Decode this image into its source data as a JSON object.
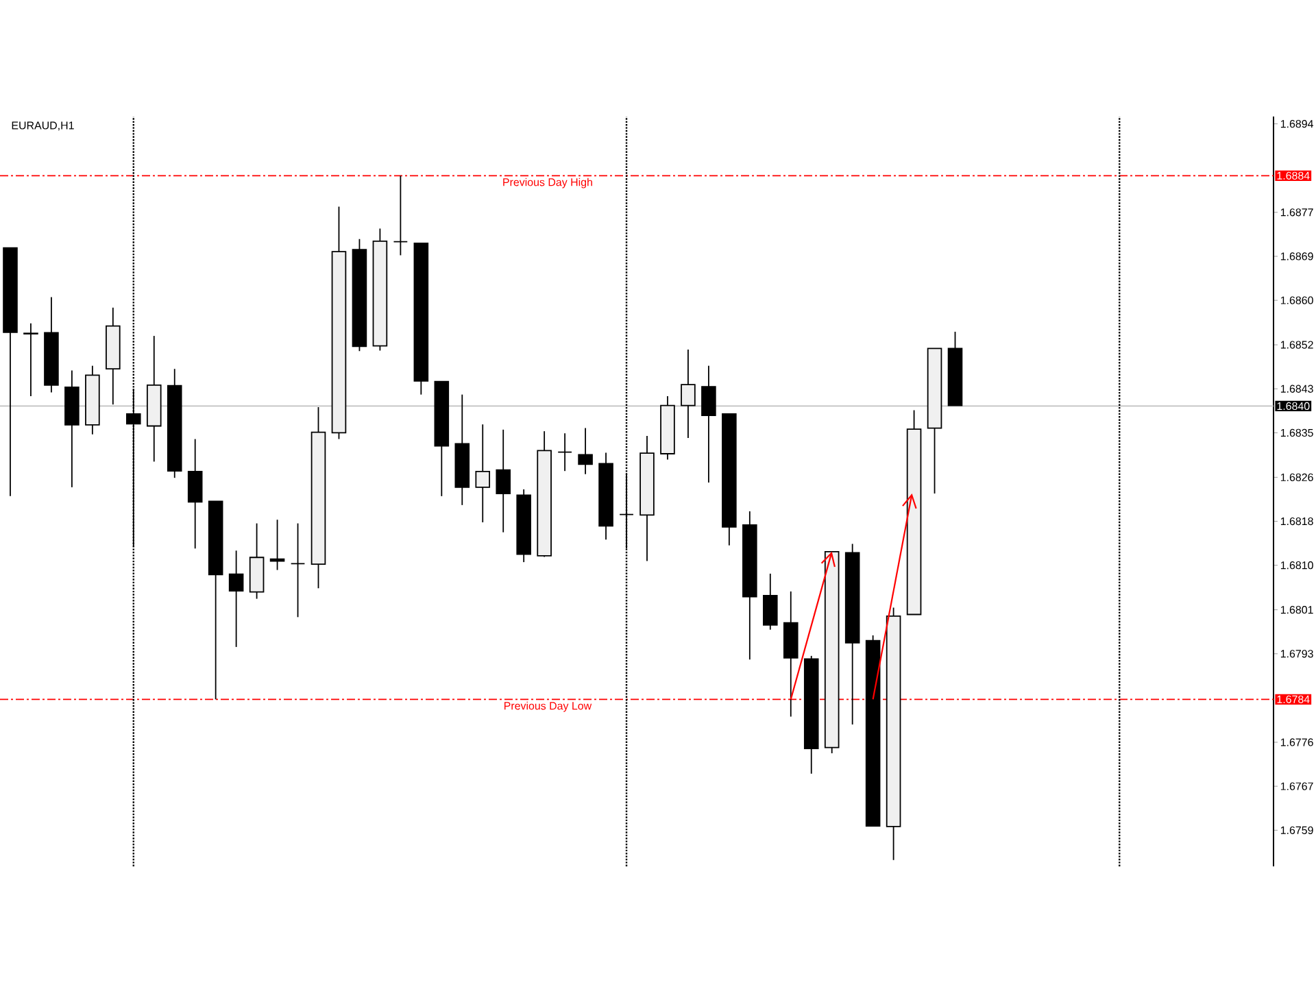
{
  "chart_data": {
    "type": "candlestick",
    "title": "EURAUD,H1",
    "categories": [
      null,
      null,
      null,
      null,
      null,
      null,
      null,
      null,
      null,
      null,
      null,
      null,
      null,
      null,
      null,
      null,
      null,
      null,
      null,
      null,
      null,
      null,
      null,
      null,
      null,
      null,
      null,
      null,
      null,
      null,
      null,
      null,
      null,
      null,
      null,
      null,
      null,
      null,
      null,
      null,
      null,
      null,
      null,
      null,
      null,
      null,
      null,
      null,
      null,
      null,
      null,
      null,
      null,
      null,
      null,
      null,
      null,
      null,
      null,
      null,
      null,
      null
    ],
    "ohlc": [
      [
        1.68702,
        1.68702,
        1.68228,
        1.68541
      ],
      [
        1.68539,
        1.68558,
        1.68419,
        1.68538
      ],
      [
        1.6854,
        1.68608,
        1.68426,
        1.6844
      ],
      [
        1.68436,
        1.68468,
        1.68245,
        1.68364
      ],
      [
        1.68364,
        1.68477,
        1.68346,
        1.68459
      ],
      [
        1.68471,
        1.68588,
        1.68403,
        1.68553
      ],
      [
        1.68385,
        1.68433,
        1.68132,
        1.68366
      ],
      [
        1.68362,
        1.68534,
        1.68294,
        1.6844
      ],
      [
        1.68439,
        1.68471,
        1.68263,
        1.68276
      ],
      [
        1.68275,
        1.68337,
        1.68128,
        1.68217
      ],
      [
        1.68218,
        1.68218,
        1.6784,
        1.68078
      ],
      [
        1.68079,
        1.68124,
        1.6794,
        1.68047
      ],
      [
        1.68045,
        1.68176,
        1.68032,
        1.68111
      ],
      [
        1.68108,
        1.68183,
        1.68087,
        1.68104
      ],
      [
        1.68099,
        1.68176,
        1.67997,
        1.68099
      ],
      [
        1.68098,
        1.68398,
        1.68052,
        1.6835
      ],
      [
        1.68349,
        1.68781,
        1.68337,
        1.68695
      ],
      [
        1.68699,
        1.68719,
        1.68505,
        1.68514
      ],
      [
        1.68515,
        1.68739,
        1.68506,
        1.68715
      ],
      [
        1.68714,
        1.6884,
        1.68688,
        1.68714
      ],
      [
        1.68711,
        1.68711,
        1.68422,
        1.68448
      ],
      [
        1.68447,
        1.68447,
        1.68228,
        1.68324
      ],
      [
        1.68328,
        1.68422,
        1.68211,
        1.68245
      ],
      [
        1.68245,
        1.68365,
        1.68178,
        1.68275
      ],
      [
        1.68278,
        1.68355,
        1.68159,
        1.68233
      ],
      [
        1.6823,
        1.68241,
        1.68102,
        1.68117
      ],
      [
        1.68114,
        1.68352,
        1.68112,
        1.68315
      ],
      [
        1.68312,
        1.68348,
        1.68276,
        1.68312
      ],
      [
        1.68307,
        1.68358,
        1.6827,
        1.68289
      ],
      [
        1.6829,
        1.68311,
        1.68145,
        1.68171
      ],
      [
        1.68193,
        1.68272,
        1.68128,
        1.68193
      ],
      [
        1.68192,
        1.68343,
        1.68104,
        1.6831
      ],
      [
        1.68309,
        1.68419,
        1.68298,
        1.68401
      ],
      [
        1.68401,
        1.68508,
        1.68339,
        1.68441
      ],
      [
        1.68437,
        1.68477,
        1.68254,
        1.68382
      ],
      [
        1.68385,
        1.68385,
        1.68134,
        1.68169
      ],
      [
        1.68173,
        1.68199,
        1.67916,
        1.68036
      ],
      [
        1.68038,
        1.6808,
        1.67973,
        1.67982
      ],
      [
        1.67986,
        1.68046,
        1.67807,
        1.67919
      ],
      [
        1.67917,
        1.67923,
        1.67698,
        1.67746
      ],
      [
        1.67748,
        1.68122,
        1.67737,
        1.68122
      ],
      [
        1.6812,
        1.68137,
        1.67792,
        1.67948
      ],
      [
        1.67952,
        1.67962,
        1.67598,
        1.67598
      ],
      [
        1.67597,
        1.68015,
        1.67533,
        1.67999
      ],
      [
        1.68002,
        1.68392,
        1.68002,
        1.68356
      ],
      [
        1.68358,
        1.6851,
        1.68233,
        1.6851
      ],
      [
        1.6851,
        1.68542,
        1.68401,
        1.68401
      ],
      null,
      null,
      null,
      null,
      null,
      null,
      null,
      null,
      null,
      null,
      null,
      null,
      null,
      null,
      null
    ],
    "ylim": [
      1.67521,
      1.68953
    ],
    "yticks": [
      {
        "value": 1.6759,
        "label": "1.6759"
      },
      {
        "value": 1.67674,
        "label": "1.6767"
      },
      {
        "value": 1.67758,
        "label": "1.6776"
      },
      {
        "value": 1.67927,
        "label": "1.6793"
      },
      {
        "value": 1.68011,
        "label": "1.6801"
      },
      {
        "value": 1.68096,
        "label": "1.6810"
      },
      {
        "value": 1.6818,
        "label": "1.6818"
      },
      {
        "value": 1.68264,
        "label": "1.6826"
      },
      {
        "value": 1.68349,
        "label": "1.6835"
      },
      {
        "value": 1.68433,
        "label": "1.6843"
      },
      {
        "value": 1.68517,
        "label": "1.6852"
      },
      {
        "value": 1.68602,
        "label": "1.6860"
      },
      {
        "value": 1.68686,
        "label": "1.6869"
      },
      {
        "value": 1.6877,
        "label": "1.6877"
      },
      {
        "value": 1.68939,
        "label": "1.6894"
      }
    ],
    "tick_labels": "y",
    "grid": "x",
    "ref_lines": [
      {
        "axis": "y",
        "value": 1.6884,
        "label": "1.6884",
        "color": "#ff0000",
        "line_style": "dashdot"
      },
      {
        "axis": "y",
        "value": 1.6784,
        "label": "1.6784",
        "color": "#ff0000",
        "line_style": "dashdot"
      },
      {
        "axis": "y",
        "value": 1.684,
        "label": "1.6840",
        "color": "#c0c0c0",
        "line_style": "solid"
      }
    ],
    "annotations": [
      {
        "text": "Previous Day High",
        "y": 1.6884
      },
      {
        "text": "Previous Day Low",
        "y": 1.6784
      }
    ]
  }
}
